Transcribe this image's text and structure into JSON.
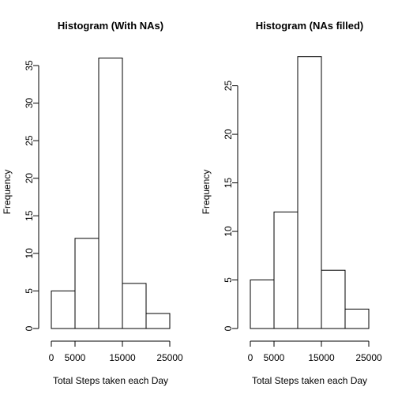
{
  "chart_data": [
    {
      "type": "bar",
      "title": "Histogram (With NAs)",
      "xlabel": "Total Steps taken each Day",
      "ylabel": "Frequency",
      "bins": [
        [
          0,
          5000
        ],
        [
          5000,
          10000
        ],
        [
          10000,
          15000
        ],
        [
          15000,
          20000
        ],
        [
          20000,
          25000
        ]
      ],
      "values": [
        5,
        12,
        36,
        6,
        2
      ],
      "xlim": [
        0,
        25000
      ],
      "ylim": [
        0,
        36
      ],
      "x_ticks": [
        0,
        5000,
        15000,
        25000
      ],
      "x_tick_labels": [
        "0",
        "5000",
        "15000",
        "25000"
      ],
      "y_ticks": [
        0,
        5,
        10,
        15,
        20,
        25,
        30,
        35
      ],
      "y_tick_labels": [
        "0",
        "5",
        "10",
        "15",
        "20",
        "25",
        "30",
        "35"
      ],
      "bar_fill": "#ffffff",
      "bar_stroke": "#000000",
      "grid": false
    },
    {
      "type": "bar",
      "title": "Histogram (NAs filled)",
      "xlabel": "Total Steps taken each Day",
      "ylabel": "Frequency",
      "bins": [
        [
          0,
          5000
        ],
        [
          5000,
          10000
        ],
        [
          10000,
          15000
        ],
        [
          15000,
          20000
        ],
        [
          20000,
          25000
        ]
      ],
      "values": [
        5,
        12,
        28,
        6,
        2
      ],
      "xlim": [
        0,
        25000
      ],
      "ylim": [
        0,
        28
      ],
      "x_ticks": [
        0,
        5000,
        15000,
        25000
      ],
      "x_tick_labels": [
        "0",
        "5000",
        "15000",
        "25000"
      ],
      "y_ticks": [
        0,
        5,
        10,
        15,
        20,
        25
      ],
      "y_tick_labels": [
        "0",
        "5",
        "10",
        "15",
        "20",
        "25"
      ],
      "bar_fill": "#ffffff",
      "bar_stroke": "#000000",
      "grid": false
    }
  ]
}
